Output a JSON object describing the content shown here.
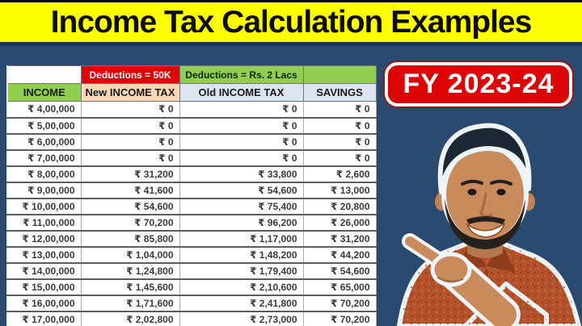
{
  "banner": {
    "title": "Income Tax Calculation Examples"
  },
  "fy_badge": {
    "label": "FY 2023-24"
  },
  "table": {
    "group_headers": {
      "income_blank": "",
      "new_tax_deduction": "Deductions = 50K",
      "old_tax_deduction": "Deductions = Rs. 2 Lacs",
      "savings_blank": ""
    },
    "columns": [
      "INCOME",
      "New INCOME TAX",
      "Old INCOME TAX",
      "SAVINGS"
    ],
    "rows": [
      [
        "₹ 4,00,000",
        "₹ 0",
        "₹ 0",
        "₹ 0"
      ],
      [
        "₹ 5,00,000",
        "₹ 0",
        "₹ 0",
        "₹ 0"
      ],
      [
        "₹ 6,00,000",
        "₹ 0",
        "₹ 0",
        "₹ 0"
      ],
      [
        "₹ 7,00,000",
        "₹ 0",
        "₹ 0",
        "₹ 0"
      ],
      [
        "₹ 8,00,000",
        "₹ 31,200",
        "₹ 33,800",
        "₹ 2,600"
      ],
      [
        "₹ 9,00,000",
        "₹ 41,600",
        "₹ 54,600",
        "₹ 13,000"
      ],
      [
        "₹ 10,00,000",
        "₹ 54,600",
        "₹ 75,400",
        "₹ 20,800"
      ],
      [
        "₹ 11,00,000",
        "₹ 70,200",
        "₹ 96,200",
        "₹ 26,000"
      ],
      [
        "₹ 12,00,000",
        "₹ 85,800",
        "₹ 1,17,000",
        "₹ 31,200"
      ],
      [
        "₹ 13,00,000",
        "₹ 1,04,000",
        "₹ 1,48,200",
        "₹ 44,200"
      ],
      [
        "₹ 14,00,000",
        "₹ 1,24,800",
        "₹ 1,79,400",
        "₹ 54,600"
      ],
      [
        "₹ 15,00,000",
        "₹ 1,45,600",
        "₹ 2,10,600",
        "₹ 65,000"
      ],
      [
        "₹ 16,00,000",
        "₹ 1,71,600",
        "₹ 2,41,800",
        "₹ 70,200"
      ],
      [
        "₹ 17,00,000",
        "₹ 2,02,800",
        "₹ 2,73,000",
        "₹ 70,200"
      ]
    ]
  },
  "person": {
    "icon": "presenter-pointing-photo"
  },
  "colors": {
    "banner_bg": "#ffff00",
    "page_bg": "#2b4a70",
    "badge_red": "#dc0505",
    "deduction_red": "#e00404",
    "green": "#8fce4e",
    "peach": "#fbd7b6",
    "light_blue": "#dbe5f1"
  }
}
